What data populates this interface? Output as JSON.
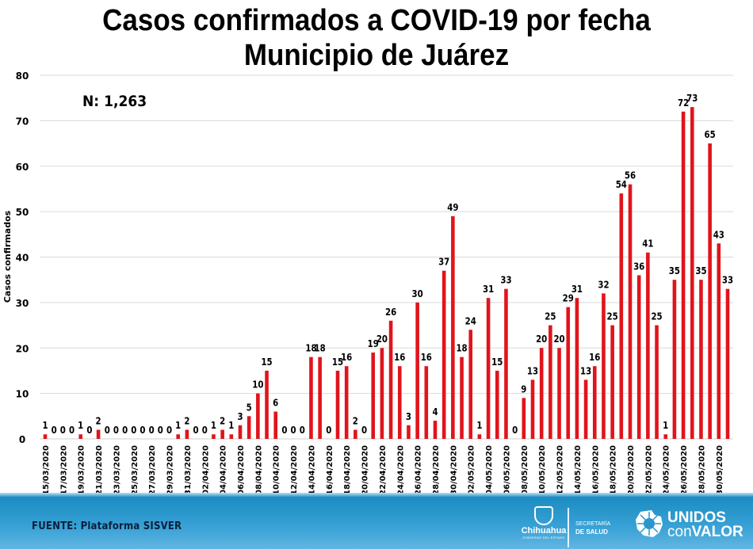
{
  "header": {
    "title_line1": "Casos confirmados a COVID-19 por fecha",
    "title_line2": "Municipio de Juárez"
  },
  "annotation": {
    "total_label": "N: 1,263"
  },
  "footer": {
    "source": "FUENTE: Plataforma SISVER",
    "logo_chihuahua": "Chihuahua",
    "logo_chihuahua_sub": "GOBIERNO DEL ESTADO",
    "secretaria_line1": "SECRETARÍA",
    "secretaria_line2": "DE SALUD",
    "unidos_line1": "UNIDOS",
    "unidos_line2_a": "con",
    "unidos_line2_b": "VALOR"
  },
  "colors": {
    "bar": "#e0141b",
    "grid": "#d9d9d9",
    "footer": "#1a8cc2"
  },
  "chart_data": {
    "type": "bar",
    "title": "Casos confirmados a COVID-19 por fecha Municipio de Juárez",
    "xlabel": "",
    "ylabel": "Casos confirmados",
    "ylim": [
      0,
      80
    ],
    "yticks": [
      0,
      10,
      20,
      30,
      40,
      50,
      60,
      70,
      80
    ],
    "grid": true,
    "data_labels": true,
    "tick_label_every": 2,
    "categories": [
      "15/03/2020",
      "16/03/2020",
      "17/03/2020",
      "18/03/2020",
      "19/03/2020",
      "20/03/2020",
      "21/03/2020",
      "22/03/2020",
      "23/03/2020",
      "24/03/2020",
      "25/03/2020",
      "26/03/2020",
      "27/03/2020",
      "28/03/2020",
      "29/03/2020",
      "30/03/2020",
      "31/03/2020",
      "01/04/2020",
      "02/04/2020",
      "03/04/2020",
      "04/04/2020",
      "05/04/2020",
      "06/04/2020",
      "07/04/2020",
      "08/04/2020",
      "09/04/2020",
      "10/04/2020",
      "11/04/2020",
      "12/04/2020",
      "13/04/2020",
      "14/04/2020",
      "15/04/2020",
      "16/04/2020",
      "17/04/2020",
      "18/04/2020",
      "19/04/2020",
      "20/04/2020",
      "21/04/2020",
      "22/04/2020",
      "23/04/2020",
      "24/04/2020",
      "25/04/2020",
      "26/04/2020",
      "27/04/2020",
      "28/04/2020",
      "29/04/2020",
      "30/04/2020",
      "01/05/2020",
      "02/05/2020",
      "03/05/2020",
      "04/05/2020",
      "05/05/2020",
      "06/05/2020",
      "07/05/2020",
      "08/05/2020",
      "09/05/2020",
      "10/05/2020",
      "11/05/2020",
      "12/05/2020",
      "13/05/2020",
      "14/05/2020",
      "15/05/2020",
      "16/05/2020",
      "17/05/2020",
      "18/05/2020",
      "19/05/2020",
      "20/05/2020",
      "21/05/2020",
      "22/05/2020",
      "23/05/2020",
      "24/05/2020",
      "25/05/2020",
      "26/05/2020",
      "27/05/2020",
      "28/05/2020",
      "29/05/2020",
      "30/05/2020",
      "31/05/2020"
    ],
    "values": [
      1,
      0,
      0,
      0,
      1,
      0,
      2,
      0,
      0,
      0,
      0,
      0,
      0,
      0,
      0,
      1,
      2,
      0,
      0,
      1,
      2,
      1,
      3,
      5,
      10,
      15,
      6,
      0,
      0,
      0,
      18,
      18,
      0,
      15,
      16,
      2,
      0,
      19,
      20,
      26,
      16,
      3,
      30,
      16,
      4,
      37,
      49,
      18,
      24,
      1,
      31,
      15,
      33,
      0,
      9,
      13,
      20,
      25,
      20,
      29,
      31,
      13,
      16,
      32,
      25,
      54,
      56,
      36,
      41,
      25,
      1,
      35,
      72,
      73,
      35,
      65,
      43,
      33
    ]
  }
}
